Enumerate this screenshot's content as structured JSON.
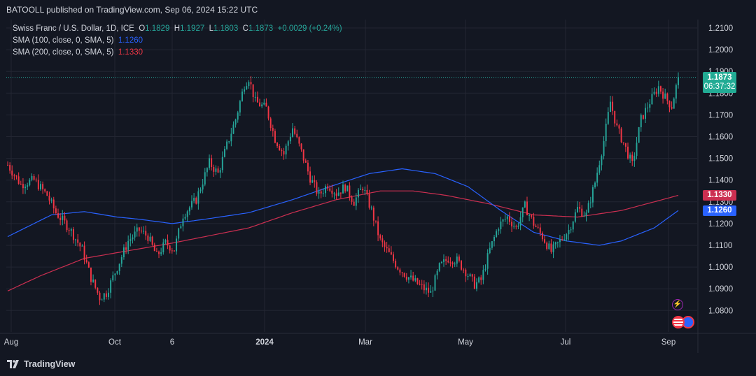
{
  "header": {
    "published": "BATOOLL published on TradingView.com, Sep 06, 2024 15:22 UTC"
  },
  "legend": {
    "symbol": "Swiss Franc / U.S. Dollar, 1D, ICE",
    "o_label": "O",
    "o_value": "1.1829",
    "h_label": "H",
    "h_value": "1.1927",
    "l_label": "L",
    "l_value": "1.1803",
    "c_label": "C",
    "c_value": "1.1873",
    "change": "+0.0029 (+0.24%)",
    "sma100_label": "SMA (100, close, 0, SMA, 5)",
    "sma100_value": "1.1260",
    "sma200_label": "SMA (200, close, 0, SMA, 5)",
    "sma200_value": "1.1330"
  },
  "price_tags": {
    "last": "1.1873",
    "countdown": "06:37:32",
    "sma200": "1.1330",
    "sma100": "1.1260"
  },
  "colors": {
    "up": "#26a69a",
    "down": "#f23645",
    "sma100": "#2962ff",
    "sma200": "#cc2f51",
    "background": "#131722",
    "grid": "#232632",
    "text": "#d1d4dc"
  },
  "brand": {
    "name": "TradingView"
  },
  "chart_data": {
    "type": "candlestick",
    "y_axis": {
      "range": [
        1.076,
        1.212
      ],
      "ticks": [
        "1.2100",
        "1.2000",
        "1.1900",
        "1.1800",
        "1.1700",
        "1.1600",
        "1.1500",
        "1.1400",
        "1.1300",
        "1.1200",
        "1.1100",
        "1.1000",
        "1.0900",
        "1.0800"
      ]
    },
    "x_axis": {
      "ticks": [
        "Aug",
        "Oct",
        "6",
        "2024",
        "Mar",
        "May",
        "Jul",
        "Sep"
      ],
      "bold_ticks": [
        "2024"
      ]
    },
    "grid": true,
    "ohlc_keypoints": [
      [
        0,
        1.147
      ],
      [
        6,
        1.138
      ],
      [
        12,
        1.14
      ],
      [
        18,
        1.133
      ],
      [
        22,
        1.125
      ],
      [
        28,
        1.118
      ],
      [
        34,
        1.108
      ],
      [
        38,
        1.095
      ],
      [
        42,
        1.086
      ],
      [
        45,
        1.088
      ],
      [
        50,
        1.1
      ],
      [
        55,
        1.112
      ],
      [
        60,
        1.117
      ],
      [
        64,
        1.114
      ],
      [
        68,
        1.105
      ],
      [
        72,
        1.111
      ],
      [
        76,
        1.108
      ],
      [
        80,
        1.124
      ],
      [
        86,
        1.131
      ],
      [
        92,
        1.148
      ],
      [
        96,
        1.143
      ],
      [
        100,
        1.156
      ],
      [
        104,
        1.168
      ],
      [
        108,
        1.184
      ],
      [
        110,
        1.187
      ],
      [
        113,
        1.176
      ],
      [
        118,
        1.173
      ],
      [
        122,
        1.159
      ],
      [
        126,
        1.152
      ],
      [
        130,
        1.164
      ],
      [
        134,
        1.153
      ],
      [
        138,
        1.141
      ],
      [
        142,
        1.133
      ],
      [
        146,
        1.138
      ],
      [
        150,
        1.134
      ],
      [
        154,
        1.137
      ],
      [
        158,
        1.13
      ],
      [
        162,
        1.137
      ],
      [
        166,
        1.126
      ],
      [
        170,
        1.112
      ],
      [
        174,
        1.106
      ],
      [
        178,
        1.1
      ],
      [
        182,
        1.096
      ],
      [
        186,
        1.093
      ],
      [
        190,
        1.09
      ],
      [
        193,
        1.088
      ],
      [
        197,
        1.1
      ],
      [
        201,
        1.104
      ],
      [
        205,
        1.103
      ],
      [
        209,
        1.098
      ],
      [
        213,
        1.092
      ],
      [
        216,
        1.094
      ],
      [
        220,
        1.108
      ],
      [
        224,
        1.119
      ],
      [
        228,
        1.123
      ],
      [
        232,
        1.118
      ],
      [
        236,
        1.128
      ],
      [
        240,
        1.12
      ],
      [
        244,
        1.114
      ],
      [
        248,
        1.107
      ],
      [
        252,
        1.112
      ],
      [
        256,
        1.117
      ],
      [
        260,
        1.127
      ],
      [
        264,
        1.124
      ],
      [
        268,
        1.139
      ],
      [
        272,
        1.158
      ],
      [
        275,
        1.176
      ],
      [
        278,
        1.164
      ],
      [
        281,
        1.157
      ],
      [
        285,
        1.147
      ],
      [
        289,
        1.168
      ],
      [
        293,
        1.176
      ],
      [
        297,
        1.183
      ],
      [
        300,
        1.178
      ],
      [
        303,
        1.174
      ],
      [
        306,
        1.1873
      ]
    ],
    "sma100_keypoints": [
      [
        0,
        1.114
      ],
      [
        20,
        1.124
      ],
      [
        35,
        1.1255
      ],
      [
        50,
        1.123
      ],
      [
        60,
        1.122
      ],
      [
        75,
        1.12
      ],
      [
        90,
        1.122
      ],
      [
        110,
        1.125
      ],
      [
        130,
        1.131
      ],
      [
        150,
        1.138
      ],
      [
        165,
        1.143
      ],
      [
        180,
        1.1452
      ],
      [
        195,
        1.143
      ],
      [
        210,
        1.137
      ],
      [
        225,
        1.126
      ],
      [
        240,
        1.116
      ],
      [
        255,
        1.112
      ],
      [
        270,
        1.11
      ],
      [
        280,
        1.112
      ],
      [
        295,
        1.118
      ],
      [
        306,
        1.126
      ]
    ],
    "sma200_keypoints": [
      [
        0,
        1.089
      ],
      [
        15,
        1.096
      ],
      [
        35,
        1.104
      ],
      [
        55,
        1.1075
      ],
      [
        75,
        1.111
      ],
      [
        95,
        1.115
      ],
      [
        110,
        1.118
      ],
      [
        130,
        1.125
      ],
      [
        150,
        1.131
      ],
      [
        170,
        1.135
      ],
      [
        185,
        1.135
      ],
      [
        200,
        1.133
      ],
      [
        220,
        1.129
      ],
      [
        240,
        1.124
      ],
      [
        260,
        1.123
      ],
      [
        280,
        1.126
      ],
      [
        295,
        1.13
      ],
      [
        306,
        1.133
      ]
    ],
    "last_price": 1.1873
  }
}
